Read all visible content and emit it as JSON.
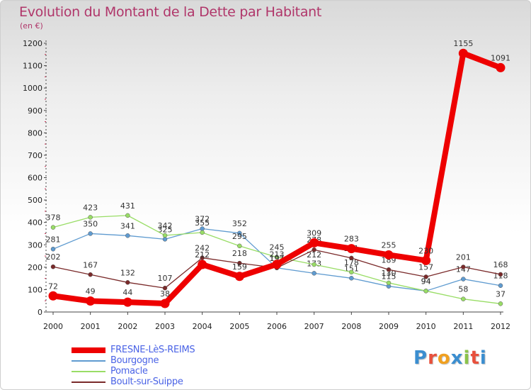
{
  "header": {
    "title": "Evolution du Montant de la Dette par Habitant",
    "subtitle": "(en €)"
  },
  "logo": {
    "text": "Proxiti",
    "colors": [
      "#3b8ed0",
      "#e8503c",
      "#f0a020",
      "#3b8ed0",
      "#8bc34a",
      "#e8503c",
      "#3b8ed0"
    ]
  },
  "chart_data": {
    "type": "line",
    "title": "Evolution du Montant de la Dette par Habitant",
    "subtitle": "(en €)",
    "xlabel": "",
    "ylabel": "",
    "x": [
      "2000",
      "2001",
      "2002",
      "2003",
      "2004",
      "2005",
      "2006",
      "2007",
      "2008",
      "2009",
      "2010",
      "2011",
      "2012"
    ],
    "ylim": [
      0,
      1200
    ],
    "yticks": [
      0,
      100,
      200,
      300,
      400,
      500,
      600,
      700,
      800,
      900,
      1000,
      1100,
      1200
    ],
    "grid": false,
    "legend_position": "bottom-left",
    "series": [
      {
        "name": "FRESNE-LèS-REIMS",
        "color": "#ee0000",
        "values": [
          72,
          49,
          44,
          38,
          212,
          159,
          213,
          309,
          283,
          255,
          230,
          1155,
          1091
        ],
        "labels": [
          "72",
          "49",
          "44",
          "38",
          "212",
          "159",
          "213",
          "309",
          "283",
          "255",
          "230",
          "1155",
          "1091"
        ]
      },
      {
        "name": "Bourgogne",
        "color": "#5f9bd0",
        "values": [
          281,
          350,
          341,
          325,
          372,
          352,
          197,
          173,
          151,
          115,
          94,
          147,
          118
        ],
        "labels": [
          "281",
          "350",
          "341",
          "325",
          "372",
          "352",
          "197",
          "173",
          "151",
          "115",
          "94",
          "147",
          "118"
        ]
      },
      {
        "name": "Pomacle",
        "color": "#99dd66",
        "values": [
          378,
          423,
          431,
          342,
          355,
          295,
          245,
          212,
          178,
          130,
          94,
          58,
          37
        ],
        "labels": [
          "378",
          "423",
          "431",
          "342",
          "355",
          "295",
          "245",
          "212",
          "178",
          "130",
          "94",
          "58",
          "37"
        ]
      },
      {
        "name": "Boult-sur-Suippe",
        "color": "#7a2a2a",
        "values": [
          202,
          167,
          132,
          107,
          242,
          218,
          197,
          278,
          241,
          189,
          157,
          201,
          168
        ],
        "labels": [
          "202",
          "167",
          "132",
          "107",
          "242",
          "218",
          "197",
          "278",
          "241",
          "189",
          "157",
          "201",
          "168"
        ]
      }
    ]
  }
}
